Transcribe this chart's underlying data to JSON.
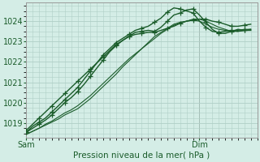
{
  "bg_color": "#d4ede6",
  "grid_color": "#b0cfc6",
  "line_color": "#1a5c2a",
  "marker_color": "#1a5c2a",
  "xlabel": "Pression niveau de la mer( hPa )",
  "ylim": [
    1018.3,
    1024.9
  ],
  "yticks": [
    1019,
    1020,
    1021,
    1022,
    1023,
    1024
  ],
  "xlim": [
    0,
    36
  ],
  "sam_x": 0,
  "dim_x": 27,
  "sam_label": "Sam",
  "dim_label": "Dim",
  "series": [
    {
      "y": [
        1018.55,
        1018.75,
        1018.95,
        1019.15,
        1019.4,
        1019.7,
        1020.0,
        1020.25,
        1020.55,
        1020.9,
        1021.3,
        1021.7,
        1022.1,
        1022.5,
        1022.8,
        1023.05,
        1023.25,
        1023.45,
        1023.5,
        1023.55,
        1023.5,
        1023.7,
        1024.0,
        1024.3,
        1024.4,
        1024.55,
        1024.6,
        1024.3,
        1023.95,
        1023.6,
        1023.4,
        1023.4,
        1023.5,
        1023.6,
        1023.55,
        1023.6
      ],
      "marked": true,
      "lw": 1.0
    },
    {
      "y": [
        1018.55,
        1018.85,
        1019.05,
        1019.25,
        1019.55,
        1019.85,
        1020.15,
        1020.45,
        1020.75,
        1021.15,
        1021.55,
        1021.95,
        1022.35,
        1022.65,
        1022.95,
        1023.15,
        1023.35,
        1023.55,
        1023.65,
        1023.75,
        1023.95,
        1024.15,
        1024.45,
        1024.65,
        1024.6,
        1024.5,
        1024.4,
        1024.0,
        1023.7,
        1023.5,
        1023.45,
        1023.5,
        1023.55,
        1023.5,
        1023.55,
        1023.55
      ],
      "marked": true,
      "lw": 1.0
    },
    {
      "y": [
        1018.65,
        1018.95,
        1019.25,
        1019.55,
        1019.85,
        1020.15,
        1020.45,
        1020.75,
        1021.05,
        1021.35,
        1021.65,
        1021.95,
        1022.25,
        1022.55,
        1022.85,
        1023.05,
        1023.25,
        1023.35,
        1023.4,
        1023.45,
        1023.45,
        1023.55,
        1023.65,
        1023.75,
        1023.9,
        1024.0,
        1024.05,
        1024.1,
        1024.1,
        1024.0,
        1023.95,
        1023.85,
        1023.75,
        1023.75,
        1023.8,
        1023.85
      ],
      "marked": true,
      "lw": 1.0
    },
    {
      "y": [
        1018.45,
        1018.6,
        1018.75,
        1018.95,
        1019.1,
        1019.3,
        1019.5,
        1019.65,
        1019.85,
        1020.1,
        1020.35,
        1020.65,
        1020.95,
        1021.25,
        1021.55,
        1021.85,
        1022.15,
        1022.4,
        1022.65,
        1022.9,
        1023.15,
        1023.4,
        1023.6,
        1023.8,
        1023.9,
        1024.0,
        1024.1,
        1024.1,
        1024.0,
        1023.85,
        1023.7,
        1023.6,
        1023.5,
        1023.55,
        1023.6,
        1023.6
      ],
      "marked": false,
      "lw": 0.8
    },
    {
      "y": [
        1018.45,
        1018.6,
        1018.75,
        1018.9,
        1019.05,
        1019.2,
        1019.4,
        1019.55,
        1019.7,
        1019.95,
        1020.2,
        1020.5,
        1020.8,
        1021.1,
        1021.4,
        1021.75,
        1022.05,
        1022.35,
        1022.65,
        1022.95,
        1023.25,
        1023.45,
        1023.65,
        1023.85,
        1023.95,
        1024.0,
        1024.05,
        1024.0,
        1023.85,
        1023.7,
        1023.6,
        1023.55,
        1023.5,
        1023.5,
        1023.55,
        1023.55
      ],
      "marked": false,
      "lw": 0.8
    }
  ],
  "marker_every": 2
}
